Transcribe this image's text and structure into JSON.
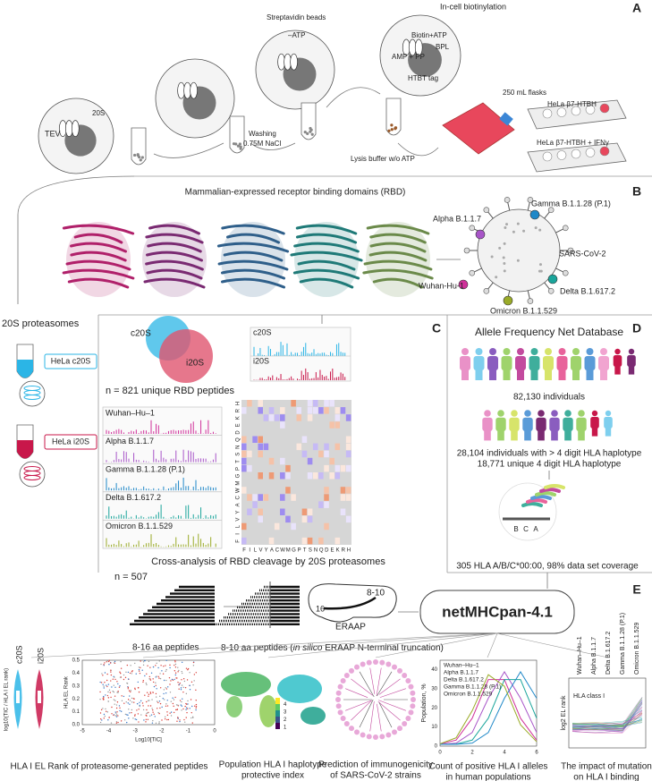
{
  "panel_labels": [
    "A",
    "B",
    "C",
    "D",
    "E"
  ],
  "panel_a": {
    "in_cell": "In-cell biotinylation",
    "biotin_atp": "Biotin+ATP",
    "bpl": "BPL",
    "amp_pp": "AMP + PP",
    "htbt_tag": "HTBT tag",
    "flasks": "250 mL flasks",
    "cell_line_1": "HeLa β7-HTBH",
    "cell_line_2": "HeLa β7-HTBH + IFNγ",
    "lysis": "Lysis buffer w/o ATP",
    "beads": "Streptavidin beads",
    "minus_atp": "–ATP",
    "washing": "Washing",
    "nacl": "0.75M NaCl",
    "tev": "TEV",
    "s20": "20S"
  },
  "panel_b": {
    "title": "Mammalian-expressed receptor binding domains (RBD)",
    "alpha": "Alpha B.1.1.7",
    "gamma": "Gamma B.1.1.28 (P.1)",
    "virus": "SARS-CoV-2",
    "wuhan": "Wuhan-Hu-1",
    "delta": "Delta B.1.617.2",
    "omicron": "Omicron B.1.1.529"
  },
  "proteasomes": {
    "title": "20S proteasomes",
    "c20s": "HeLa c20S",
    "i20s": "HeLa i20S"
  },
  "panel_c": {
    "venn": [
      "c20S",
      "i20S"
    ],
    "n_peptides": "n = 821 unique RBD peptides",
    "spectra_top": [
      "c20S",
      "i20S"
    ],
    "spectra_variants": [
      "Wuhan–Hu–1",
      "Alpha B.1.1.7",
      "Gamma B.1.1.28 (P.1)",
      "Delta B.1.617.2",
      "Omicron B.1.1.529"
    ],
    "residues": [
      "F",
      "I",
      "L",
      "V",
      "Y",
      "A",
      "C",
      "W",
      "M",
      "G",
      "P",
      "T",
      "S",
      "N",
      "Q",
      "D",
      "E",
      "K",
      "R",
      "H"
    ],
    "caption": "Cross-analysis of RBD cleavage by 20S proteasomes"
  },
  "panel_d": {
    "title": "Allele Frequency Net Database",
    "individuals": "82,130 individuals",
    "haplotype_1": "28,104 individuals with > 4 digit HLA haplotype",
    "haplotype_2": "18,771 unique 4 digit HLA haplotype",
    "genes": [
      "B",
      "C",
      "A"
    ],
    "coverage": "305 HLA A/B/C*00:00, 98% data set coverage"
  },
  "processing": {
    "n": "n = 507",
    "peptides_1": "8-16 aa peptides",
    "peptides_2_prefix": "8-10 aa peptides (",
    "peptides_2_italic": "in silico",
    "peptides_2_suffix": " ERAAP N-terminal truncation)",
    "len_16": "16",
    "len_8_10": "8-10",
    "eraap": "ERAAP",
    "tool": "netMHCpan-4.1"
  },
  "panel_e": {
    "violin": {
      "groups": [
        "c20S",
        "i20S"
      ],
      "y_label": "log10(TIC / HLA I EL rank)",
      "caption": [
        "HLA I EL Rank of proteasome-generated peptides"
      ]
    },
    "scatter": {
      "y_label": "HLA EL Rank",
      "x_label": "Log10[TIC]",
      "yticks": [
        "0.0",
        "0.1",
        "0.2",
        "0.3",
        "0.4",
        "0.5"
      ],
      "xticks": [
        "-5",
        "-4",
        "-3",
        "-2",
        "-1",
        "0"
      ]
    },
    "map": {
      "colorbar": [
        "1",
        "2",
        "3",
        "4"
      ],
      "caption": [
        "Population HLA I haplotype",
        "protective index"
      ]
    },
    "tree": {
      "caption": [
        "Prediction of immunogenicity",
        "of SARS-CoV-2 strains"
      ]
    },
    "lines": {
      "legend": [
        "Wuhan–Hu–1",
        "Alpha B.1.1.7",
        "Delta B.1.617.2",
        "Gamma B.1.1.28 (P.1)",
        "Omicron B.1.1.529"
      ],
      "y_label": "Population, %",
      "yticks": [
        "0",
        "10",
        "20",
        "30",
        "40"
      ],
      "xticks": [
        "0",
        "2",
        "4",
        "6"
      ],
      "caption": [
        "Count of positive HLA I alleles",
        "in human populations"
      ]
    },
    "binding": {
      "variants": [
        "Wuhan–Hu–1",
        "Alpha B.1.1.7",
        "Delta B.1.617.2",
        "Gamma B.1.1.28 (P.1)",
        "Omicron B.1.1.529"
      ],
      "y_label": "log2 EL rank",
      "inner_label": "HLA class I",
      "caption": [
        "The impact of mutation",
        "on HLA I binding"
      ]
    }
  }
}
